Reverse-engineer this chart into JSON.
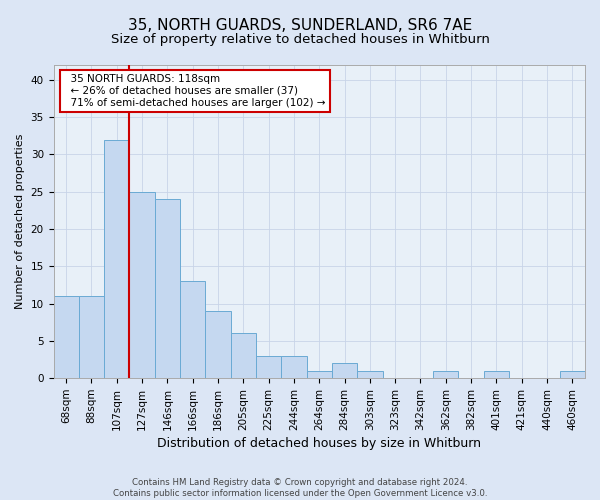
{
  "title": "35, NORTH GUARDS, SUNDERLAND, SR6 7AE",
  "subtitle": "Size of property relative to detached houses in Whitburn",
  "xlabel": "Distribution of detached houses by size in Whitburn",
  "ylabel": "Number of detached properties",
  "footer_line1": "Contains HM Land Registry data © Crown copyright and database right 2024.",
  "footer_line2": "Contains public sector information licensed under the Open Government Licence v3.0.",
  "categories": [
    "68sqm",
    "88sqm",
    "107sqm",
    "127sqm",
    "146sqm",
    "166sqm",
    "186sqm",
    "205sqm",
    "225sqm",
    "244sqm",
    "264sqm",
    "284sqm",
    "303sqm",
    "323sqm",
    "342sqm",
    "362sqm",
    "382sqm",
    "401sqm",
    "421sqm",
    "440sqm",
    "460sqm"
  ],
  "values": [
    11,
    11,
    32,
    25,
    24,
    13,
    9,
    6,
    3,
    3,
    1,
    2,
    1,
    0,
    0,
    1,
    0,
    1,
    0,
    0,
    1
  ],
  "bar_color": "#c5d8f0",
  "bar_edge_color": "#6aaad4",
  "vline_color": "#cc0000",
  "vline_x": 2.5,
  "annotation_text": "  35 NORTH GUARDS: 118sqm\n  ← 26% of detached houses are smaller (37)\n  71% of semi-detached houses are larger (102) →",
  "annotation_box_color": "#ffffff",
  "annotation_box_edge": "#cc0000",
  "ylim": [
    0,
    42
  ],
  "yticks": [
    0,
    5,
    10,
    15,
    20,
    25,
    30,
    35,
    40
  ],
  "grid_color": "#c8d4e8",
  "background_color": "#dce6f5",
  "plot_bg_color": "#e8f0f8",
  "title_fontsize": 11,
  "subtitle_fontsize": 9.5,
  "xlabel_fontsize": 9,
  "ylabel_fontsize": 8,
  "tick_fontsize": 7.5
}
